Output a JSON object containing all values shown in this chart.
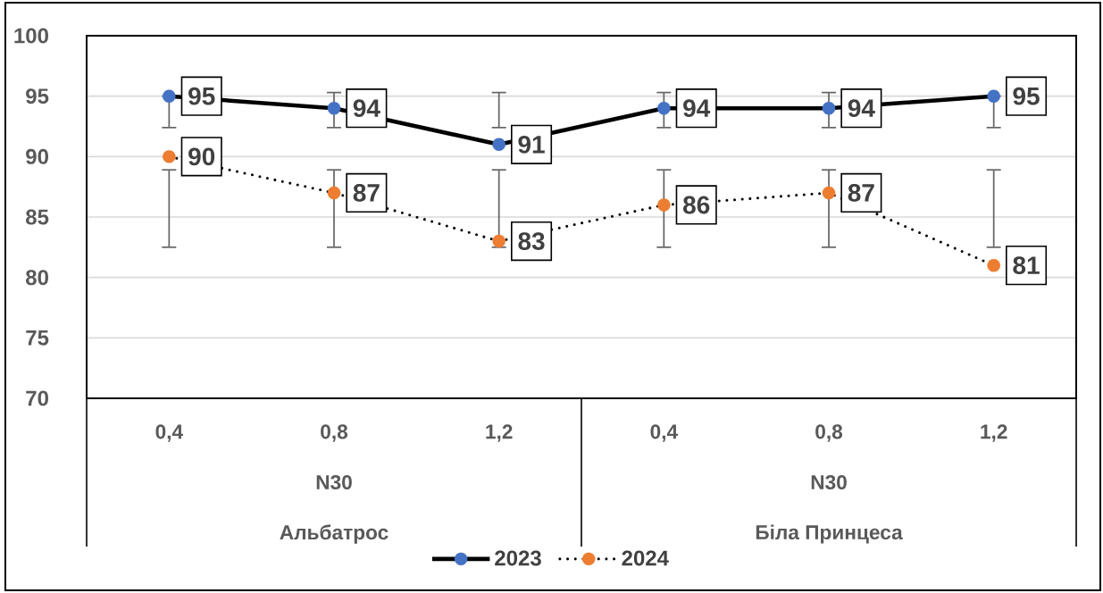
{
  "chart_data": {
    "type": "line",
    "categories": [
      "0,4",
      "0,8",
      "1,2",
      "0,4",
      "0,8",
      "1,2"
    ],
    "annotations": [
      "N30",
      "Альбатрос",
      "N30",
      "Біла Принцеса"
    ],
    "ylim": [
      70,
      100
    ],
    "yticks": [
      70,
      75,
      80,
      85,
      90,
      95,
      100
    ],
    "grid": "y",
    "legend": "bottom",
    "marker": "circle",
    "data_labels": true,
    "series": [
      {
        "name": "2023",
        "color": "#4472c4",
        "line_style": "solid",
        "values": [
          95,
          94,
          91,
          94,
          94,
          95
        ],
        "errors": [
          [
            92.4,
            95
          ],
          [
            92.4,
            95.3
          ],
          [
            92.4,
            95.3
          ],
          [
            92.4,
            95.3
          ],
          [
            92.4,
            95.3
          ],
          [
            92.4,
            95
          ]
        ]
      },
      {
        "name": "2024",
        "color": "#ed7d31",
        "line_style": "dotted",
        "values": [
          90,
          87,
          83,
          86,
          87,
          81
        ],
        "errors": [
          [
            82.5,
            88.9
          ],
          [
            82.5,
            88.9
          ],
          [
            82.5,
            88.9
          ],
          [
            82.5,
            88.9
          ],
          [
            82.5,
            88.9
          ],
          [
            82.5,
            88.9
          ]
        ]
      }
    ]
  }
}
